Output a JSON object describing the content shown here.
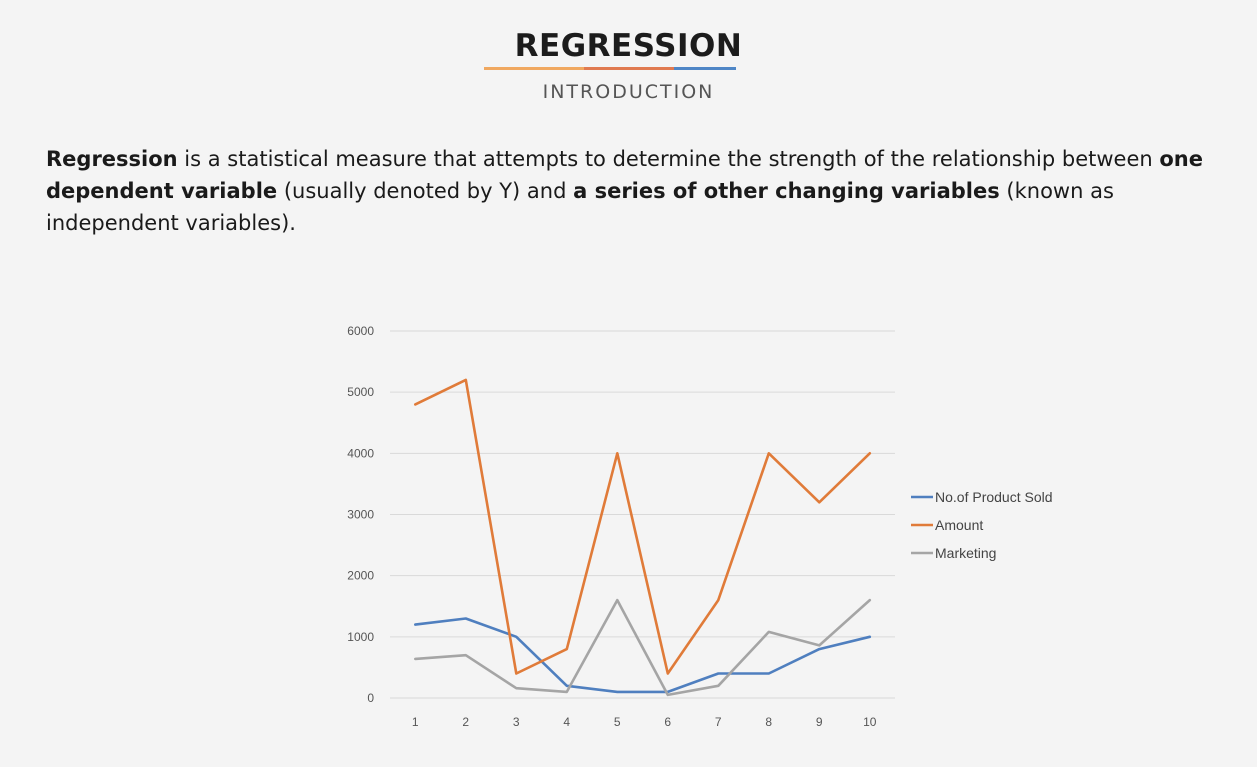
{
  "header": {
    "title": "REGRESSION",
    "subtitle": "INTRODUCTION",
    "underline_colors": [
      "#f0a860",
      "#e07a50",
      "#4f86c6"
    ]
  },
  "paragraph": {
    "t1": "Regression",
    "t2": " is a statistical measure that attempts to determine the strength of the relationship between ",
    "t3": "one dependent variable",
    "t4": " (usually denoted by Y) and ",
    "t5": "a series of other changing variables",
    "t6": " (known as independent variables)."
  },
  "chart_data": {
    "type": "line",
    "x": [
      1,
      2,
      3,
      4,
      5,
      6,
      7,
      8,
      9,
      10
    ],
    "ylim": [
      0,
      6000
    ],
    "yticks": [
      0,
      1000,
      2000,
      3000,
      4000,
      5000,
      6000
    ],
    "grid": true,
    "legend_position": "right",
    "series": [
      {
        "name": "No.of Product Sold",
        "color": "#4f7fbf",
        "values": [
          1200,
          1300,
          1000,
          200,
          100,
          100,
          400,
          400,
          800,
          1000
        ]
      },
      {
        "name": "Amount",
        "color": "#e07b39",
        "values": [
          4800,
          5200,
          400,
          800,
          4000,
          400,
          1600,
          4000,
          3200,
          4000
        ]
      },
      {
        "name": "Marketing",
        "color": "#a5a5a5",
        "values": [
          640,
          700,
          160,
          100,
          1600,
          50,
          200,
          1080,
          860,
          1600
        ]
      }
    ]
  }
}
